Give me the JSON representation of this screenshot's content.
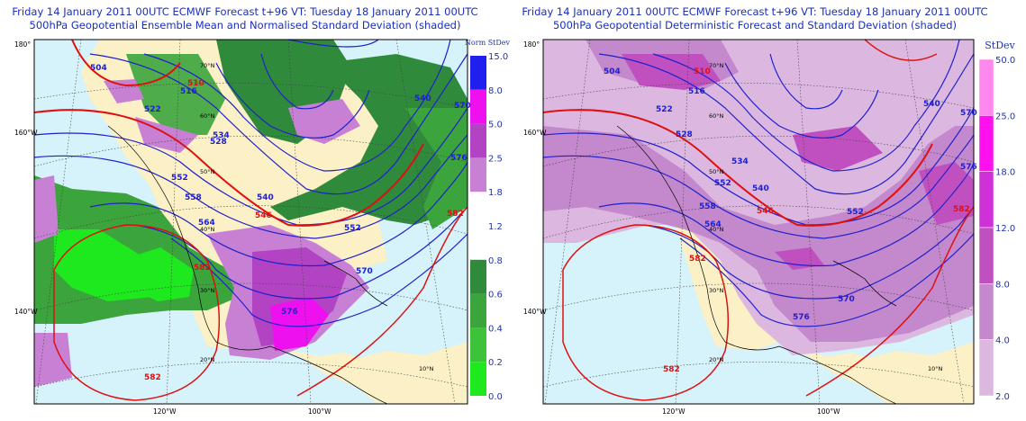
{
  "left_panel": {
    "title_line1": "Friday 14 January 2011 00UTC ECMWF Forecast t+96  VT: Tuesday 18 January 2011 00UTC",
    "title_line2": "500hPa Geopotential Ensemble Mean and Normalised Standard Deviation (shaded)",
    "colorbar_title": "Norm StDev",
    "colorbar_ticks": [
      "15.0",
      "8.0",
      "5.0",
      "2.5",
      "1.8",
      "1.2",
      "0.8",
      "0.6",
      "0.4",
      "0.2",
      "0.0"
    ],
    "colorbar_colors": [
      "#2020ee",
      "#ee10ee",
      "#b244c4",
      "#c880d4",
      "#ffffff",
      "#2f8a3c",
      "#3ca43c",
      "#3dc23a",
      "#1ee81e"
    ]
  },
  "right_panel": {
    "title_line1": "Friday 14 January 2011 00UTC ECMWF Forecast t+96  VT: Tuesday 18 January 2011 00UTC",
    "title_line2": "500hPa Geopotential Deterministic Forecast and Standard Deviation (shaded)",
    "colorbar_title": "StDev",
    "colorbar_ticks": [
      "50.0",
      "25.0",
      "18.0",
      "12.0",
      "8.0",
      "4.0",
      "2.0"
    ],
    "colorbar_colors": [
      "#ff88ee",
      "#ff10ee",
      "#d030d8",
      "#c050c0",
      "#c488cc",
      "#dcb8e0"
    ]
  },
  "axes": {
    "left_edge_labels": [
      "180°",
      "160°W",
      "140°W"
    ],
    "bottom_labels": [
      "120°W",
      "100°W"
    ],
    "lat_labels": [
      "70°N",
      "60°N",
      "50°N",
      "40°N",
      "30°N",
      "20°N",
      "10°N"
    ]
  },
  "chart_data": [
    {
      "type": "heatmap",
      "title": "500hPa Geopotential Ensemble Mean and Normalised Standard Deviation (shaded)",
      "valid_time": "Tuesday 18 January 2011 00UTC",
      "contour_labels_dam": [
        504,
        510,
        516,
        522,
        528,
        534,
        540,
        546,
        552,
        558,
        564,
        570,
        576,
        582
      ],
      "highlight_contours_red": [
        546,
        582
      ],
      "shading_levels": [
        0.0,
        0.2,
        0.4,
        0.6,
        0.8,
        1.2,
        1.8,
        2.5,
        5.0,
        8.0,
        15.0
      ],
      "grid": true
    },
    {
      "type": "heatmap",
      "title": "500hPa Geopotential Deterministic Forecast and Standard Deviation (shaded)",
      "valid_time": "Tuesday 18 January 2011 00UTC",
      "contour_labels_dam": [
        504,
        510,
        516,
        522,
        528,
        534,
        540,
        546,
        552,
        558,
        564,
        570,
        576,
        582
      ],
      "highlight_contours_red": [
        546,
        582
      ],
      "shading_levels": [
        2.0,
        4.0,
        8.0,
        12.0,
        18.0,
        25.0,
        50.0
      ],
      "grid": true
    }
  ]
}
